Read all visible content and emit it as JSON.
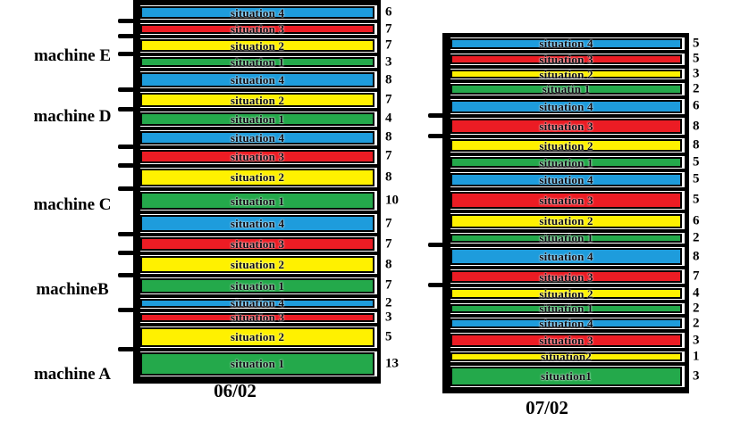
{
  "colors": {
    "blue": "#1E9CDC",
    "red": "#EC1C24",
    "yellow": "#FFF100",
    "green": "#24A94B",
    "border": "#000000"
  },
  "machine_labels": [
    "machine E",
    "machine D",
    "machine C",
    "machineB",
    "machine A"
  ],
  "chart_data": {
    "type": "bar",
    "subtype": "stacked-machine-schedule",
    "grid": false,
    "legend_position": "none",
    "value_meaning": "duration shown right of each bar",
    "columns": [
      {
        "date": "06/02",
        "bars": [
          {
            "machine": "machine E",
            "label": "situation 4",
            "value": 6,
            "color": "blue",
            "h": 16,
            "tick": false
          },
          {
            "machine": "machine E",
            "label": "situation 3",
            "value": 7,
            "color": "red",
            "h": 13,
            "tick": true
          },
          {
            "machine": "machine E",
            "label": "situation 2",
            "value": 7,
            "color": "yellow",
            "h": 16,
            "tick": true
          },
          {
            "machine": "machine E",
            "label": "situation 1",
            "value": 3,
            "color": "green",
            "h": 13,
            "tick": true
          },
          {
            "machine": "machine D",
            "label": "situation 4",
            "value": 8,
            "color": "blue",
            "h": 19,
            "tick": false
          },
          {
            "machine": "machine D",
            "label": "situation 2",
            "value": 7,
            "color": "yellow",
            "h": 17,
            "tick": true
          },
          {
            "machine": "machine D",
            "label": "situation 1",
            "value": 4,
            "color": "green",
            "h": 17,
            "tick": true
          },
          {
            "machine": "machine C",
            "label": "situation 4",
            "value": 8,
            "color": "blue",
            "h": 17,
            "tick": false
          },
          {
            "machine": "machine C",
            "label": "situation 3",
            "value": 7,
            "color": "red",
            "h": 17,
            "tick": true
          },
          {
            "machine": "machine C",
            "label": "situation 2",
            "value": 8,
            "color": "yellow",
            "h": 22,
            "tick": true
          },
          {
            "machine": "machine C",
            "label": "situation 1",
            "value": 10,
            "color": "green",
            "h": 22,
            "tick": true
          },
          {
            "machine": "machineB",
            "label": "situation 4",
            "value": 7,
            "color": "blue",
            "h": 21,
            "tick": false
          },
          {
            "machine": "machineB",
            "label": "situation 3",
            "value": 7,
            "color": "red",
            "h": 17,
            "tick": true
          },
          {
            "machine": "machineB",
            "label": "situation 2",
            "value": 8,
            "color": "yellow",
            "h": 21,
            "tick": true
          },
          {
            "machine": "machineB",
            "label": "situation 1",
            "value": 7,
            "color": "green",
            "h": 18,
            "tick": true
          },
          {
            "machine": "machine A",
            "label": "situation 4",
            "value": 2,
            "color": "blue",
            "h": 12,
            "tick": false
          },
          {
            "machine": "machine A",
            "label": "situation 3",
            "value": 3,
            "color": "red",
            "h": 12,
            "tick": true
          },
          {
            "machine": "machine A",
            "label": "situation 2",
            "value": 5,
            "color": "yellow",
            "h": 24,
            "tick": false
          },
          {
            "machine": "machine A",
            "label": "situation 1",
            "value": 13,
            "color": "green",
            "h": 28,
            "tick": true
          }
        ]
      },
      {
        "date": "07/02",
        "bars": [
          {
            "machine": "machine E",
            "label": "situation 4",
            "value": 5,
            "color": "blue",
            "h": 14,
            "tick": false
          },
          {
            "machine": "machine E",
            "label": "situation 3",
            "value": 5,
            "color": "red",
            "h": 14,
            "tick": false
          },
          {
            "machine": "machine E",
            "label": "situation 2",
            "value": 3,
            "color": "yellow",
            "h": 12,
            "tick": false
          },
          {
            "machine": "machine E",
            "label": "situatin 1",
            "value": 2,
            "color": "green",
            "h": 14,
            "tick": false
          },
          {
            "machine": "machine D",
            "label": "situation 4",
            "value": 6,
            "color": "blue",
            "h": 18,
            "tick": false
          },
          {
            "machine": "machine D",
            "label": "situation 3",
            "value": 8,
            "color": "red",
            "h": 19,
            "tick": true
          },
          {
            "machine": "machine D",
            "label": "situation 2",
            "value": 8,
            "color": "yellow",
            "h": 17,
            "tick": true
          },
          {
            "machine": "machine D",
            "label": "situation 1",
            "value": 5,
            "color": "green",
            "h": 14,
            "tick": false
          },
          {
            "machine": "machine C",
            "label": "situation 4",
            "value": 5,
            "color": "blue",
            "h": 17,
            "tick": false
          },
          {
            "machine": "machine C",
            "label": "situation 3",
            "value": 5,
            "color": "red",
            "h": 22,
            "tick": false
          },
          {
            "machine": "machine C",
            "label": "situation 2",
            "value": 6,
            "color": "yellow",
            "h": 18,
            "tick": false
          },
          {
            "machine": "machine C",
            "label": "situation 1",
            "value": 2,
            "color": "green",
            "h": 13,
            "tick": false
          },
          {
            "machine": "machineB",
            "label": "situation 4",
            "value": 8,
            "color": "blue",
            "h": 21,
            "tick": true
          },
          {
            "machine": "machineB",
            "label": "situation 3",
            "value": 7,
            "color": "red",
            "h": 17,
            "tick": false
          },
          {
            "machine": "machineB",
            "label": "situation 2",
            "value": 4,
            "color": "yellow",
            "h": 14,
            "tick": true
          },
          {
            "machine": "machineB",
            "label": "situation 1",
            "value": 2,
            "color": "green",
            "h": 12,
            "tick": false
          },
          {
            "machine": "machine A",
            "label": "situation 4",
            "value": 2,
            "color": "blue",
            "h": 14,
            "tick": false
          },
          {
            "machine": "machine A",
            "label": "situation 3",
            "value": 3,
            "color": "red",
            "h": 17,
            "tick": false
          },
          {
            "machine": "machine A",
            "label": "situation2",
            "value": 1,
            "color": "yellow",
            "h": 12,
            "tick": false
          },
          {
            "machine": "machine A",
            "label": "situation1",
            "value": 3,
            "color": "green",
            "h": 25,
            "tick": false
          }
        ]
      }
    ]
  }
}
